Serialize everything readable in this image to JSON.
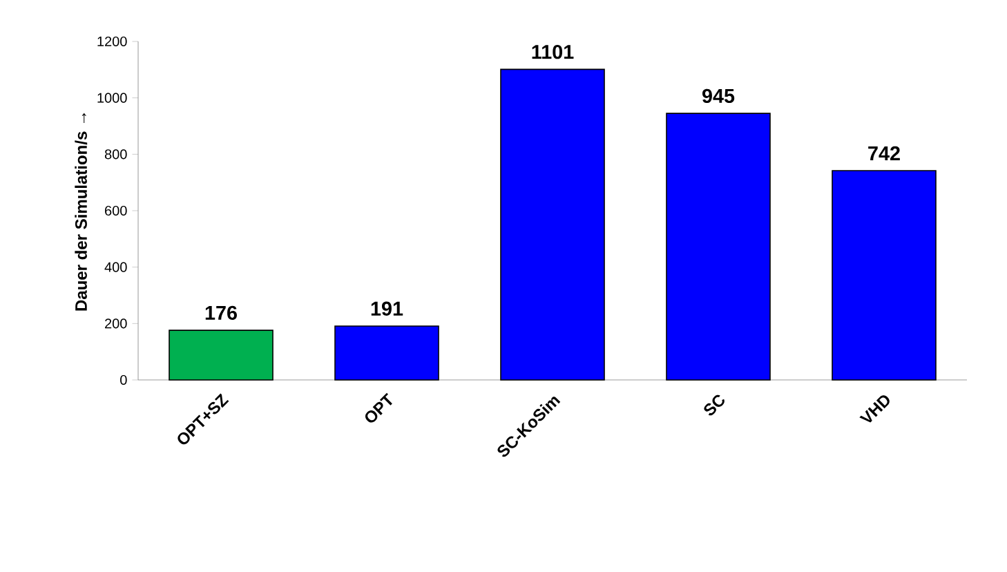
{
  "chart_data": {
    "type": "bar",
    "ylabel": "Dauer der Simulation/s →",
    "categories": [
      "OPT+SZ",
      "OPT",
      "SC-KoSim",
      "SC",
      "VHD"
    ],
    "values": [
      176,
      191,
      1101,
      945,
      742
    ],
    "colors": [
      "#00b050",
      "#0000ff",
      "#0000ff",
      "#0000ff",
      "#0000ff"
    ],
    "ylim": [
      0,
      1200
    ],
    "yticks": [
      0,
      200,
      400,
      600,
      800,
      1000,
      1200
    ],
    "data_labels": true,
    "grid": false
  }
}
